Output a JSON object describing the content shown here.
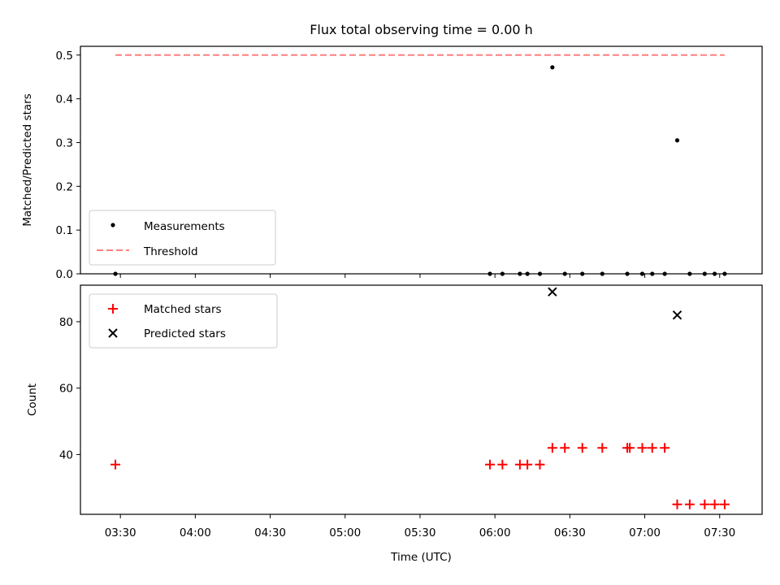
{
  "chart_data": [
    {
      "type": "scatter",
      "title": "Flux total observing time = 0.00 h",
      "ylabel": "Matched/Predicted stars",
      "xlabel": "",
      "ylim": [
        0,
        0.52
      ],
      "yticks": [
        "0.0",
        "0.1",
        "0.2",
        "0.3",
        "0.4",
        "0.5"
      ],
      "x_range": [
        "03:14",
        "07:47"
      ],
      "legend_position": "bottom-left",
      "series": [
        {
          "name": "Measurements",
          "marker": "dot",
          "color": "#000000",
          "points": [
            {
              "x": "03:28",
              "y": 0.0
            },
            {
              "x": "05:58",
              "y": 0.0
            },
            {
              "x": "06:03",
              "y": 0.0
            },
            {
              "x": "06:10",
              "y": 0.0
            },
            {
              "x": "06:13",
              "y": 0.0
            },
            {
              "x": "06:18",
              "y": 0.0
            },
            {
              "x": "06:23",
              "y": 0.472
            },
            {
              "x": "06:28",
              "y": 0.0
            },
            {
              "x": "06:35",
              "y": 0.0
            },
            {
              "x": "06:43",
              "y": 0.0
            },
            {
              "x": "06:53",
              "y": 0.0
            },
            {
              "x": "06:59",
              "y": 0.0
            },
            {
              "x": "07:03",
              "y": 0.0
            },
            {
              "x": "07:08",
              "y": 0.0
            },
            {
              "x": "07:13",
              "y": 0.305
            },
            {
              "x": "07:18",
              "y": 0.0
            },
            {
              "x": "07:24",
              "y": 0.0
            },
            {
              "x": "07:28",
              "y": 0.0
            },
            {
              "x": "07:32",
              "y": 0.0
            }
          ]
        },
        {
          "name": "Threshold",
          "style": "dashed-line",
          "color": "#ff7f7f",
          "points": [
            {
              "x": "03:28",
              "y": 0.5
            },
            {
              "x": "07:32",
              "y": 0.5
            }
          ]
        }
      ]
    },
    {
      "type": "scatter",
      "title": "",
      "ylabel": "Count",
      "xlabel": "Time (UTC)",
      "ylim": [
        22,
        91
      ],
      "yticks": [
        "40",
        "60",
        "80"
      ],
      "xticks": [
        "03:30",
        "04:00",
        "04:30",
        "05:00",
        "05:30",
        "06:00",
        "06:30",
        "07:00",
        "07:30"
      ],
      "x_range": [
        "03:14",
        "07:47"
      ],
      "legend_position": "top-left",
      "series": [
        {
          "name": "Matched stars",
          "marker": "plus",
          "color": "#ff0000",
          "points": [
            {
              "x": "03:28",
              "y": 37
            },
            {
              "x": "05:58",
              "y": 37
            },
            {
              "x": "06:03",
              "y": 37
            },
            {
              "x": "06:10",
              "y": 37
            },
            {
              "x": "06:13",
              "y": 37
            },
            {
              "x": "06:18",
              "y": 37
            },
            {
              "x": "06:23",
              "y": 42
            },
            {
              "x": "06:28",
              "y": 42
            },
            {
              "x": "06:35",
              "y": 42
            },
            {
              "x": "06:43",
              "y": 42
            },
            {
              "x": "06:53",
              "y": 42
            },
            {
              "x": "06:54",
              "y": 42
            },
            {
              "x": "06:59",
              "y": 42
            },
            {
              "x": "07:03",
              "y": 42
            },
            {
              "x": "07:08",
              "y": 42
            },
            {
              "x": "07:13",
              "y": 25
            },
            {
              "x": "07:18",
              "y": 25
            },
            {
              "x": "07:24",
              "y": 25
            },
            {
              "x": "07:28",
              "y": 25
            },
            {
              "x": "07:32",
              "y": 25
            }
          ]
        },
        {
          "name": "Predicted stars",
          "marker": "x",
          "color": "#000000",
          "points": [
            {
              "x": "06:23",
              "y": 89
            },
            {
              "x": "07:13",
              "y": 82
            }
          ]
        }
      ]
    }
  ]
}
